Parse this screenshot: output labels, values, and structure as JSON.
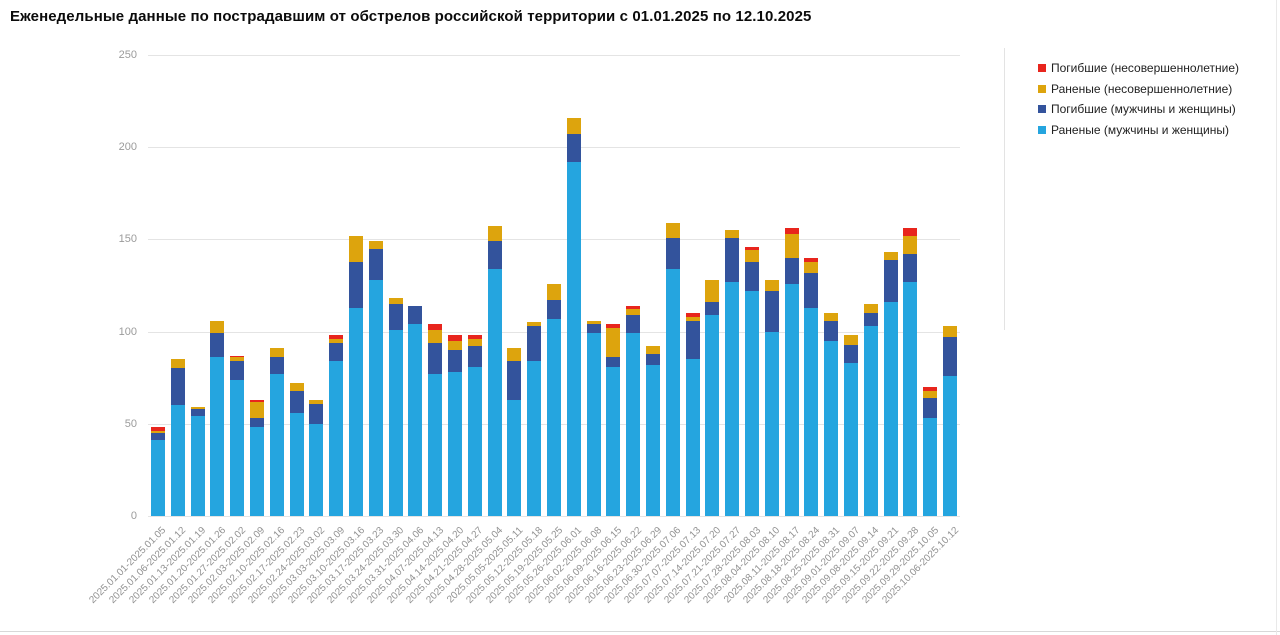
{
  "title": "Еженедельные данные по пострадавшим от обстрелов российской территории с 01.01.2025 по 12.10.2025",
  "legend": {
    "items": [
      {
        "label": "Погибшие (несовершеннолетние)",
        "color": "#e8251d",
        "series_key": "deaths_minors"
      },
      {
        "label": "Раненые (несовершеннолетние)",
        "color": "#dda40d",
        "series_key": "wounded_minors"
      },
      {
        "label": "Погибшие (мужчины и женщины)",
        "color": "#33539c",
        "series_key": "deaths_adults"
      },
      {
        "label": "Раненые (мужчины и женщины)",
        "color": "#25a5df",
        "series_key": "wounded_adults"
      }
    ]
  },
  "chart_data": {
    "type": "bar",
    "stacked": true,
    "grid": true,
    "legend_position": "top-right",
    "ylim": [
      0,
      250
    ],
    "yticks": [
      0,
      50,
      100,
      150,
      200,
      250
    ],
    "xlabel": "",
    "ylabel": "",
    "categories": [
      "2025.01.01-2025.01.05",
      "2025.01.06-2025.01.12",
      "2025.01.13-2025.01.19",
      "2025.01.20-2025.01.26",
      "2025.01.27-2025.02.02",
      "2025.02.03-2025.02.09",
      "2025.02.10-2025.02.16",
      "2025.02.17-2025.02.23",
      "2025.02.24-2025.03.02",
      "2025.03.03-2025.03.09",
      "2025.03.10-2025.03.16",
      "2025.03.17-2025.03.23",
      "2025.03.24-2025.03.30",
      "2025.03.31-2025.04.06",
      "2025.04.07-2025.04.13",
      "2025.04.14-2025.04.20",
      "2025.04.21-2025.04.27",
      "2025.04.28-2025.05.04",
      "2025.05.05-2025.05.11",
      "2025.05.12-2025.05.18",
      "2025.05.19-2025.05.25",
      "2025.05.26-2025.06.01",
      "2025.06.02-2025.06.08",
      "2025.06.09-2025.06.15",
      "2025.06.16-2025.06.22",
      "2025.06.23-2025.06.29",
      "2025.06.30-2025.07.06",
      "2025.07.07-2025.07.13",
      "2025.07.14-2025.07.20",
      "2025.07.21-2025.07.27",
      "2025.07.28-2025.08.03",
      "2025.08.04-2025.08.10",
      "2025.08.11-2025.08.17",
      "2025.08.18-2025.08.24",
      "2025.08.25-2025.08.31",
      "2025.09.01-2025.09.07",
      "2025.09.08-2025.09.14",
      "2025.09.15-2025.09.21",
      "2025.09.22-2025.09.28",
      "2025.09.29-2025.10.05",
      "2025.10.06-2025.10.12"
    ],
    "series": [
      {
        "name": "Раненые (мужчины и женщины)",
        "key": "wounded_adults",
        "color": "#25a5df",
        "values": [
          41,
          60,
          54,
          86,
          74,
          48,
          77,
          56,
          50,
          84,
          113,
          128,
          101,
          104,
          77,
          78,
          81,
          134,
          63,
          84,
          107,
          192,
          99,
          81,
          99,
          82,
          134,
          85,
          109,
          127,
          122,
          100,
          126,
          113,
          95,
          83,
          103,
          116,
          127,
          53,
          76
        ]
      },
      {
        "name": "Погибшие (мужчины и женщины)",
        "key": "deaths_adults",
        "color": "#33539c",
        "values": [
          4,
          20,
          4,
          13,
          10,
          5,
          9,
          12,
          11,
          10,
          25,
          17,
          14,
          10,
          17,
          12,
          11,
          15,
          21,
          19,
          10,
          15,
          5,
          5,
          10,
          6,
          17,
          21,
          7,
          24,
          16,
          22,
          14,
          19,
          11,
          10,
          7,
          23,
          15,
          11,
          21
        ]
      },
      {
        "name": "Раненые (несовершеннолетние)",
        "key": "wounded_minors",
        "color": "#dda40d",
        "values": [
          1,
          5,
          1,
          7,
          2,
          9,
          5,
          4,
          2,
          2,
          14,
          4,
          3,
          0,
          7,
          5,
          4,
          8,
          7,
          2,
          9,
          9,
          2,
          16,
          3,
          4,
          8,
          2,
          12,
          4,
          6,
          6,
          13,
          6,
          4,
          5,
          5,
          4,
          10,
          4,
          6
        ]
      },
      {
        "name": "Погибшие (несовершеннолетние)",
        "key": "deaths_minors",
        "color": "#e8251d",
        "values": [
          2,
          0,
          0,
          0,
          1,
          1,
          0,
          0,
          0,
          2,
          0,
          0,
          0,
          0,
          3,
          3,
          2,
          0,
          0,
          0,
          0,
          0,
          0,
          2,
          2,
          0,
          0,
          2,
          0,
          0,
          2,
          0,
          3,
          2,
          0,
          0,
          0,
          0,
          4,
          2,
          0
        ]
      }
    ]
  }
}
